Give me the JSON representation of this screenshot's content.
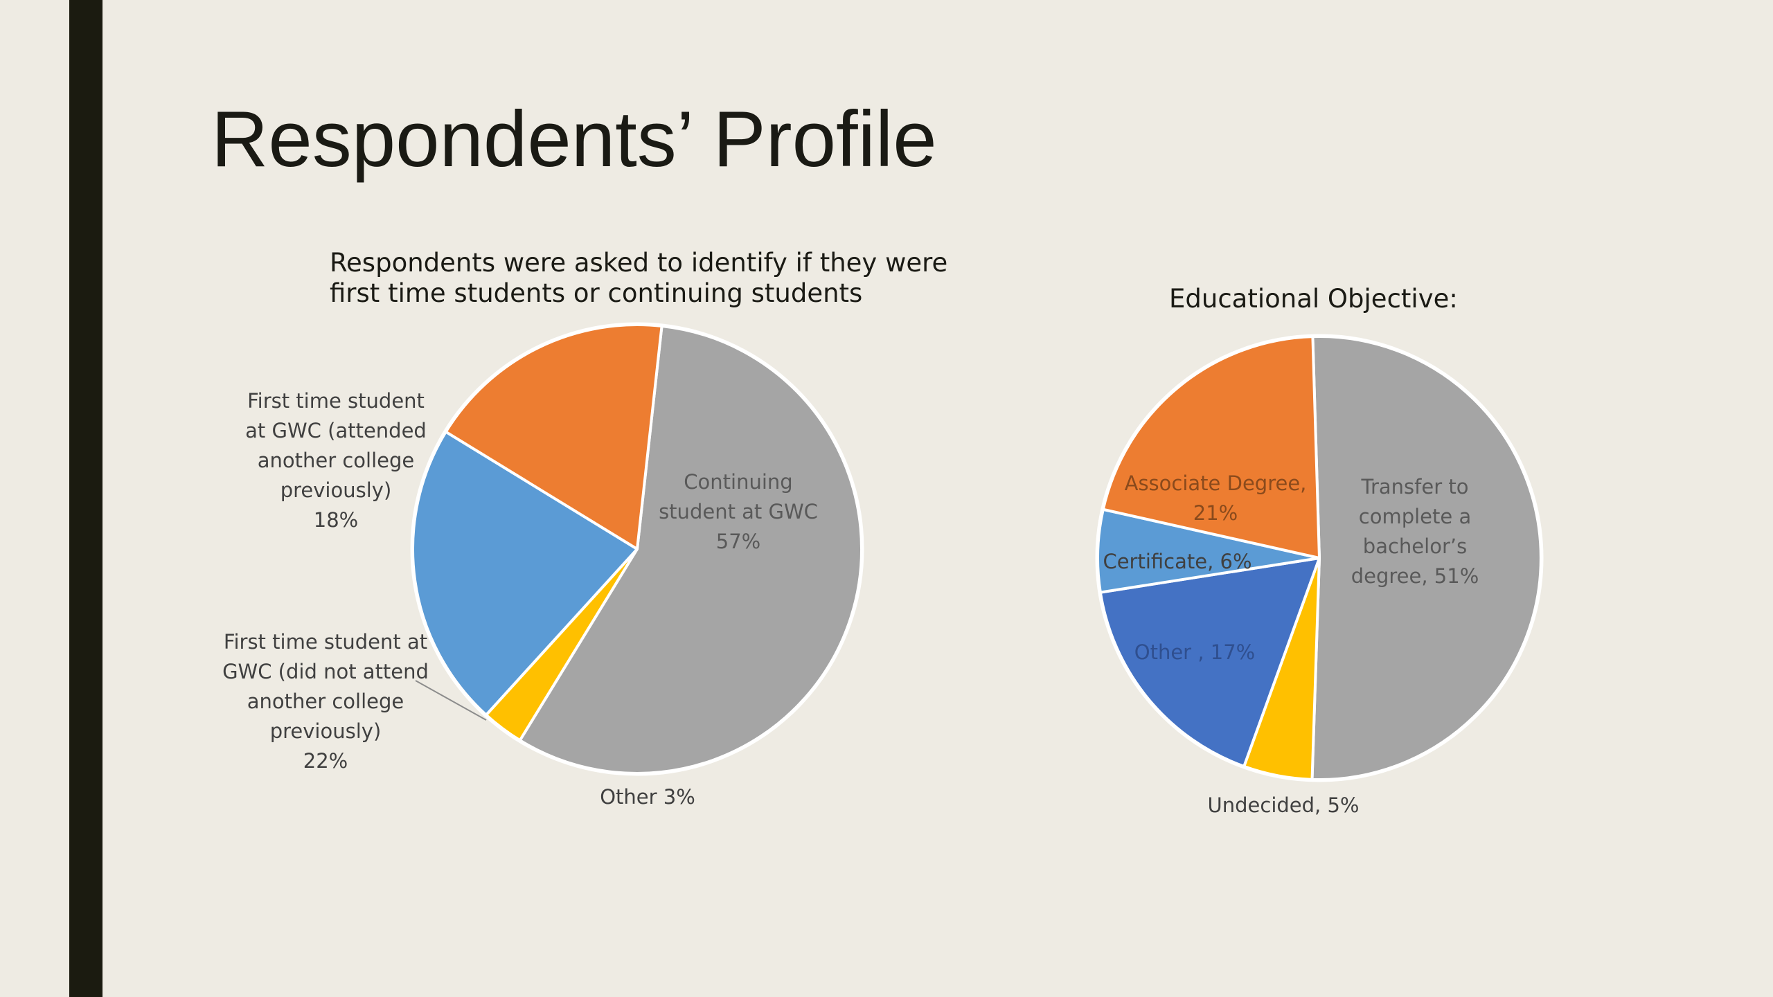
{
  "slide": {
    "title": "Respondents’ Profile"
  },
  "colors": {
    "background": "#eeebe3",
    "accent_bar": "#1b1b10",
    "gray": "#a5a5a5",
    "orange": "#ed7d31",
    "light_blue": "#5b9bd5",
    "dark_blue": "#4472c4",
    "yellow": "#ffc000"
  },
  "chart_data": [
    {
      "type": "pie",
      "title_lines": [
        "Respondents were asked to identify if they were",
        "first time students or continuing students"
      ],
      "slices": [
        {
          "name": "Continuing student at GWC",
          "value": 57,
          "color": "#a5a5a5",
          "label_lines": [
            "Continuing",
            "student at GWC",
            "57%"
          ],
          "label_color": "#595959"
        },
        {
          "name": "Other",
          "value": 3,
          "color": "#ffc000",
          "label_lines": [
            "Other 3%"
          ],
          "label_color": "#404040"
        },
        {
          "name": "First time student at GWC (did not attend another college previously)",
          "value": 22,
          "color": "#5b9bd5",
          "label_lines": [
            "First time student at",
            "GWC (did not attend",
            "another college",
            "previously)",
            "22%"
          ],
          "label_color": "#404040"
        },
        {
          "name": "First time student at GWC (attended another college previously)",
          "value": 18,
          "color": "#ed7d31",
          "label_lines": [
            "First time student",
            "at GWC (attended",
            "another college",
            "previously)",
            "18%"
          ],
          "label_color": "#404040"
        }
      ]
    },
    {
      "type": "pie",
      "title_lines": [
        "Educational Objective:"
      ],
      "slices": [
        {
          "name": "Transfer to complete a bachelor’s degree",
          "value": 51,
          "color": "#a5a5a5",
          "label_lines": [
            "Transfer to",
            "complete a",
            "bachelor’s",
            "degree, 51%"
          ],
          "label_color": "#595959"
        },
        {
          "name": "Undecided",
          "value": 5,
          "color": "#ffc000",
          "label_lines": [
            "Undecided, 5%"
          ],
          "label_color": "#404040"
        },
        {
          "name": "Other",
          "value": 17,
          "color": "#4472c4",
          "label_lines": [
            "Other , 17%"
          ],
          "label_color": "#2f4f8f"
        },
        {
          "name": "Certificate",
          "value": 6,
          "color": "#5b9bd5",
          "label_lines": [
            "Certificate, 6%"
          ],
          "label_color": "#404040"
        },
        {
          "name": "Associate Degree",
          "value": 21,
          "color": "#ed7d31",
          "label_lines": [
            "Associate Degree,",
            "21%"
          ],
          "label_color": "#8a4a1c"
        }
      ]
    }
  ]
}
